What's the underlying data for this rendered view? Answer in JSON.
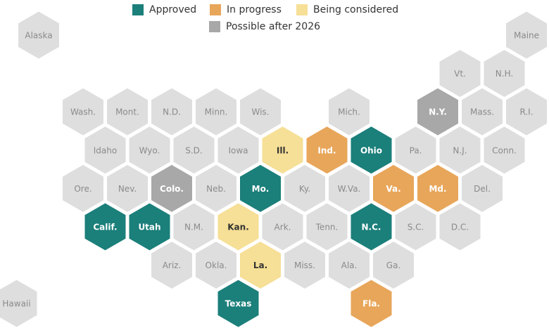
{
  "legend": [
    {
      "name": "Approved",
      "color": "#1b7f7a"
    },
    {
      "name": "In progress",
      "color": "#e8a65a"
    },
    {
      "name": "Being considered",
      "color": "#f6df96"
    },
    {
      "name": "Possible after 2026",
      "color": "#a8a8a8"
    }
  ],
  "default_color": "#dedede",
  "hexes": [
    {
      "label": "Alaska"
    },
    {
      "label": "Maine"
    },
    {
      "label": "Vt."
    },
    {
      "label": "N.H."
    },
    {
      "label": "Wash."
    },
    {
      "label": "Mont."
    },
    {
      "label": "N.D."
    },
    {
      "label": "Minn."
    },
    {
      "label": "Wis."
    },
    {
      "label": "Mich."
    },
    {
      "label": "N.Y.",
      "status": "Possible after 2026"
    },
    {
      "label": "Mass."
    },
    {
      "label": "R.I."
    },
    {
      "label": "Idaho"
    },
    {
      "label": "Wyo."
    },
    {
      "label": "S.D."
    },
    {
      "label": "Iowa"
    },
    {
      "label": "Ill.",
      "status": "Being considered"
    },
    {
      "label": "Ind.",
      "status": "In progress"
    },
    {
      "label": "Ohio",
      "status": "Approved"
    },
    {
      "label": "Pa."
    },
    {
      "label": "N.J."
    },
    {
      "label": "Conn."
    },
    {
      "label": "Ore."
    },
    {
      "label": "Nev."
    },
    {
      "label": "Colo.",
      "status": "Possible after 2026"
    },
    {
      "label": "Neb."
    },
    {
      "label": "Mo.",
      "status": "Approved"
    },
    {
      "label": "Ky."
    },
    {
      "label": "W.Va."
    },
    {
      "label": "Va.",
      "status": "In progress"
    },
    {
      "label": "Md.",
      "status": "In progress"
    },
    {
      "label": "Del."
    },
    {
      "label": "Calif.",
      "status": "Approved"
    },
    {
      "label": "Utah",
      "status": "Approved"
    },
    {
      "label": "N.M."
    },
    {
      "label": "Kan.",
      "status": "Being considered"
    },
    {
      "label": "Ark."
    },
    {
      "label": "Tenn."
    },
    {
      "label": "N.C.",
      "status": "Approved"
    },
    {
      "label": "S.C."
    },
    {
      "label": "D.C."
    },
    {
      "label": "Ariz."
    },
    {
      "label": "Okla."
    },
    {
      "label": "La.",
      "status": "Being considered"
    },
    {
      "label": "Miss."
    },
    {
      "label": "Ala."
    },
    {
      "label": "Ga."
    },
    {
      "label": "Hawaii"
    },
    {
      "label": "Texas",
      "status": "Approved"
    },
    {
      "label": "Fla.",
      "status": "In progress"
    }
  ]
}
